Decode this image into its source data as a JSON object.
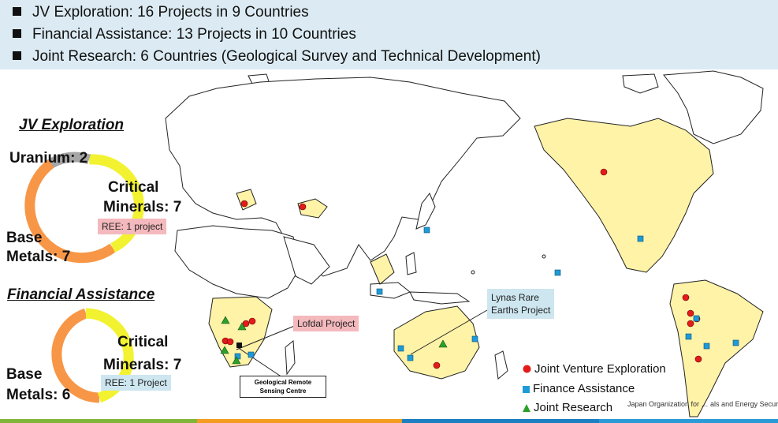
{
  "header": {
    "lines": [
      "JV Exploration:  16 Projects in 9 Countries",
      "Financial Assistance:  13 Projects in 10 Countries",
      "Joint Research:  6 Countries (Geological Survey and Technical Development)"
    ]
  },
  "jv": {
    "title": "JV Exploration",
    "uranium": "Uranium: 2",
    "critical_1": "Critical",
    "critical_2": "Minerals: 7",
    "ree_note": "REE: 1 project",
    "base_1": "Base",
    "base_2": "Metals: 7"
  },
  "fa": {
    "title": "Financial Assistance",
    "critical_1": "Critical",
    "critical_2": "Minerals: 7",
    "ree_note": "REE: 1 Project",
    "base_1": "Base",
    "base_2": "Metals: 6"
  },
  "callouts": {
    "lofdal": "Lofdal Project",
    "lynas_1": "Lynas Rare",
    "lynas_2": "Earths Project",
    "geo_1": "Geological Remote",
    "geo_2": "Sensing Centre"
  },
  "legend": {
    "jv": "Joint Venture Exploration",
    "finance": "Finance Assistance",
    "research": "Joint Research"
  },
  "footer": {
    "org": "Japan Organization for … als and Energy Security"
  },
  "colors": {
    "header_bg": "#dcebf3",
    "base_metals": "#f79646",
    "critical_minerals": "#f2f230",
    "uranium": "#a6a6a6",
    "highlight_land": "#fff3a8",
    "jv_marker": "#e31b1b",
    "finance_marker": "#1e9bd7",
    "research_marker": "#2ca02c"
  },
  "icons": {
    "jv": "red-circle",
    "finance": "blue-square",
    "research": "green-triangle"
  }
}
